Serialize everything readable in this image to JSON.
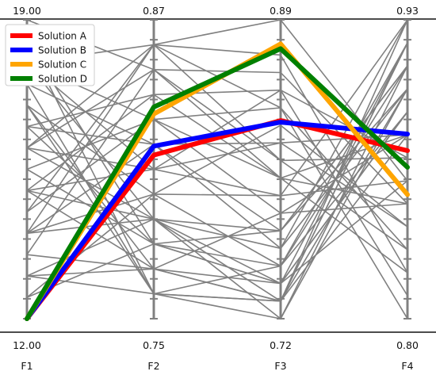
{
  "chart_data": {
    "type": "parallel-coordinates",
    "axes": [
      {
        "name": "F1",
        "max_label": "19.00",
        "min_label": "12.00",
        "min": 12.0,
        "max": 19.0
      },
      {
        "name": "F2",
        "max_label": "0.87",
        "min_label": "0.75",
        "min": 0.75,
        "max": 0.87
      },
      {
        "name": "F3",
        "max_label": "0.89",
        "min_label": "0.72",
        "min": 0.72,
        "max": 0.89
      },
      {
        "name": "F4",
        "max_label": "0.93",
        "min_label": "0.80",
        "min": 0.8,
        "max": 0.93
      }
    ],
    "highlighted": [
      {
        "name": "Solution A",
        "color": "#ff0000",
        "values": [
          12.0,
          0.8157,
          0.8327,
          0.8731
        ]
      },
      {
        "name": "Solution B",
        "color": "#0000ff",
        "values": [
          12.0,
          0.8193,
          0.8318,
          0.8803
        ]
      },
      {
        "name": "Solution C",
        "color": "#ffa500",
        "values": [
          12.0,
          0.8322,
          0.8763,
          0.854
        ]
      },
      {
        "name": "Solution D",
        "color": "#008000",
        "values": [
          12.0,
          0.835,
          0.8736,
          0.8659
        ]
      }
    ],
    "background_color": "#808080",
    "background_lines": [
      [
        18.0,
        0.86,
        0.84,
        0.8
      ],
      [
        15.0,
        0.79,
        0.73,
        0.92
      ],
      [
        14.0,
        0.8,
        0.75,
        0.91
      ],
      [
        16.5,
        0.84,
        0.85,
        0.81
      ],
      [
        13.0,
        0.77,
        0.73,
        0.9
      ],
      [
        17.5,
        0.82,
        0.76,
        0.93
      ],
      [
        14.0,
        0.86,
        0.89,
        0.86
      ],
      [
        15.5,
        0.78,
        0.74,
        0.89
      ],
      [
        16.0,
        0.81,
        0.82,
        0.84
      ],
      [
        13.0,
        0.79,
        0.77,
        0.91
      ],
      [
        19.0,
        0.85,
        0.81,
        0.83
      ],
      [
        18.5,
        0.76,
        0.73,
        0.92
      ],
      [
        14.5,
        0.83,
        0.8,
        0.88
      ],
      [
        15.0,
        0.77,
        0.74,
        0.86
      ],
      [
        16.0,
        0.86,
        0.87,
        0.82
      ],
      [
        12.5,
        0.8,
        0.79,
        0.93
      ],
      [
        17.0,
        0.77,
        0.73,
        0.88
      ],
      [
        18.0,
        0.83,
        0.78,
        0.85
      ],
      [
        15.0,
        0.81,
        0.85,
        0.87
      ],
      [
        13.0,
        0.76,
        0.72,
        0.9
      ],
      [
        16.5,
        0.78,
        0.75,
        0.92
      ],
      [
        17.0,
        0.8,
        0.83,
        0.84
      ],
      [
        14.0,
        0.82,
        0.77,
        0.91
      ],
      [
        18.0,
        0.79,
        0.74,
        0.89
      ],
      [
        16.0,
        0.85,
        0.86,
        0.85
      ],
      [
        13.5,
        0.77,
        0.78,
        0.88
      ],
      [
        15.0,
        0.84,
        0.8,
        0.82
      ],
      [
        17.5,
        0.76,
        0.73,
        0.93
      ],
      [
        14.5,
        0.86,
        0.81,
        0.87
      ],
      [
        16.0,
        0.79,
        0.76,
        0.9
      ],
      [
        18.0,
        0.81,
        0.79,
        0.86
      ],
      [
        12.5,
        0.78,
        0.74,
        0.92
      ],
      [
        15.5,
        0.83,
        0.84,
        0.83
      ],
      [
        17.0,
        0.76,
        0.75,
        0.89
      ],
      [
        14.0,
        0.79,
        0.72,
        0.91
      ],
      [
        16.5,
        0.82,
        0.82,
        0.88
      ],
      [
        13.5,
        0.85,
        0.8,
        0.85
      ],
      [
        18.5,
        0.78,
        0.77,
        0.9
      ]
    ],
    "legend": {
      "position": "top-left",
      "entries": [
        "Solution A",
        "Solution B",
        "Solution C",
        "Solution D"
      ]
    }
  }
}
